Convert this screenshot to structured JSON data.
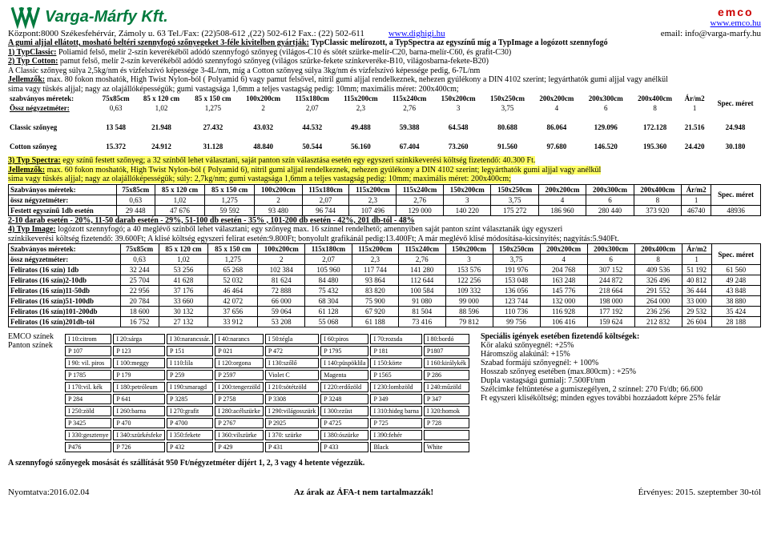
{
  "header": {
    "company": "Varga-Márfy Kft.",
    "address": "Központ:8000 Székesfehérvár, Zámoly u. 63 Tel./Fax: (22)508-612 ,(22) 502-612 Fax.: (22) 502-611",
    "link_dighigi": "www.dighigi.hu",
    "email_label": "email: info@varga-marfy.hu",
    "emco_brand": "emco",
    "emco_link": "www.emco.hu"
  },
  "intro": {
    "line1a": "A gumi aljjal ellátott, mosható beltéri szennyfogó szőnyegeket 3-féle kivitelben gyártják:",
    "line1b": " TypClassic melírozott, a TypSpectra az egyszínű míg a TypImage a logózott szennyfogó",
    "line2a": "1) TypClassic:",
    "line2b": " Poliamid felső, melír 2-szín keverékéből adódó szennyfogó szőnyeg (világos-C10 és sötét szürke-melír-C20, barna-melír-C60, és grafit-C30)",
    "line3a": "2) Typ Cotton:",
    "line3b": " pamut felső, melír 2-szín keverékéből adódó szennyfogó szőnyeg (világos szürke-fekete színkeveréke-B10, világosbarna-fekete-B20)",
    "line4": "A Classic szőnyeg súlya 2,5kg/nm és vízfelszívó képessége 3-4L/nm, míg a Cotton szőnyeg súlya 3kg/nm és vízfelszívó képessége pedig, 6-7L/nm",
    "line5a": "Jellemzők:",
    "line5b": " max. 80 fokon moshatók, High Twist Nylon-ból ( Polyamid 6) vagy pamut felsővel, nitril gumi aljjal rendelkeznek, nehezen gyúlékony a DIN 4102 szerint; legyárthatók gumi aljjal vagy anélkül",
    "line6": "sima vagy tüskés aljjal; nagy az olajállóképességük; gumi vastagsága 1,6mm a teljes vastagság pedig: 10mm; maximális méret: 200x400cm;"
  },
  "table1": {
    "headers": [
      "",
      "75x85cm",
      "85 x 120 cm",
      "85 x 150 cm",
      "100x200cm",
      "115x180cm",
      "115x200cm",
      "115x240cm",
      "150x200cm",
      "150x250cm",
      "200x200cm",
      "200x300cm",
      "200x400cm",
      "Ár/m2",
      "Spec. méret"
    ],
    "row_labels": [
      "szabványos méretek:",
      "Össz négyzetméter:"
    ],
    "row_nm": [
      "0,63",
      "1,02",
      "1,275",
      "2",
      "2,07",
      "2,3",
      "2,76",
      "3",
      "3,75",
      "4",
      "6",
      "8",
      "1",
      ""
    ],
    "classic_label": "Classic szőnyeg",
    "classic": [
      "13 548",
      "21.948",
      "27.432",
      "43.032",
      "44.532",
      "49.488",
      "59.388",
      "64.548",
      "80.688",
      "86.064",
      "129.096",
      "172.128",
      "21.516",
      "24.948"
    ],
    "cotton_label": "Cotton szőnyeg",
    "cotton": [
      "15.372",
      "24.912",
      "31.128",
      "48.840",
      "50.544",
      "56.160",
      "67.404",
      "73.260",
      "91.560",
      "97.680",
      "146.520",
      "195.360",
      "24.420",
      "30.180"
    ]
  },
  "section3": {
    "line1a": "3) Typ Spectra:",
    "line1b": " egy színű festett szőnyeg; a 32 színből lehet választani, saját panton szín választása esetén egy egyszeri színkikeverési költség fizetendő: 40.300 Ft.",
    "line2a": "Jellemzők:",
    "line2b": " max. 60 fokon moshatók, High Twist Nylon-ból ( Polyamid 6), nitril gumi aljjal rendelkeznek, nehezen gyúlékony a DIN 4102 szerint; legyárthatók gumi aljjal vagy anélkül",
    "line3": "sima vagy tüskés aljjal; nagy az olajállóképességük; súly: 2,7kg/nm; gumi vastagsága 1,6mm a teljes vastagság pedig: 10mm; maximális méret: 200x400cm;"
  },
  "table2": {
    "r1_label": "Szabványos méretek:",
    "headers": [
      "75x85cm",
      "85 x 120 cm",
      "85 x 150 cm",
      "100x200cm",
      "115x180cm",
      "115x200cm",
      "115x240cm",
      "150x200cm",
      "150x250cm",
      "200x200cm",
      "200x300cm",
      "200x400cm",
      "Ár/m2",
      "Spec. méret"
    ],
    "r2_label": "össz négyzetméter:",
    "r2": [
      "0,63",
      "1,02",
      "1,275",
      "2",
      "2,07",
      "2,3",
      "2,76",
      "3",
      "3,75",
      "4",
      "6",
      "8",
      "1",
      ""
    ],
    "r3_label": "Festett egyszínű 1db esetén",
    "r3": [
      "29 448",
      "47 676",
      "59 592",
      "93 480",
      "96 744",
      "107 496",
      "129 000",
      "140 220",
      "175 272",
      "186 960",
      "280 440",
      "373 920",
      "46740",
      "48936"
    ]
  },
  "discount": "2-10 darab esetén - 20%, 11-50 darab esetén - 29%, 51-100 db esetén - 35% , 101-200 db esetén - 42%, 201 db-tól - 48%",
  "section4": {
    "line1a": "4) Typ Image:",
    "line1b": " logózott szennyfogó; a 40 meglévő színből lehet választani; egy szőnyeg max. 16 színnel rendelhető; amennyiben saját panton színt választanák úgy egyszeri",
    "line2": "színkikeverési költség fizetendő: 39.600Ft; A klisé költség egyszeri felirat esetén:9.800Ft; bonyolult grafikánál pedig:13.400Ft; A már meglévő klisé módosítása-kicsinyítés; nagyítás:5.940Ft."
  },
  "table3": {
    "r1_label": "Szabványos méretek:",
    "headers": [
      "75x85cm",
      "85 x 120 cm",
      "85 x 150 cm",
      "100x200cm",
      "115x180cm",
      "115x200cm",
      "115x240cm",
      "150x200cm",
      "150x250cm",
      "200x200cm",
      "200x300cm",
      "200x400cm",
      "Ár/m2",
      "Spec. méret"
    ],
    "r2_label": "össz négyzetméter:",
    "r2": [
      "0,63",
      "1,02",
      "1,275",
      "2",
      "2,07",
      "2,3",
      "2,76",
      "3",
      "3,75",
      "4",
      "6",
      "8",
      "1",
      ""
    ],
    "rows": [
      {
        "label": "Feliratos (16 szín) 1db",
        "v": [
          "32 244",
          "53 256",
          "65 268",
          "102 384",
          "105 960",
          "117 744",
          "141 280",
          "153 576",
          "191 976",
          "204 768",
          "307 152",
          "409 536",
          "51 192",
          "61 560"
        ]
      },
      {
        "label": "Feliratos (16 szín)2-10db",
        "v": [
          "25 704",
          "41 628",
          "52 032",
          "81 624",
          "84 480",
          "93 864",
          "112 644",
          "122 256",
          "153 048",
          "163 248",
          "244 872",
          "326 496",
          "40 812",
          "49 248"
        ]
      },
      {
        "label": "Feliratos (16 szín)11-50db",
        "v": [
          "22 956",
          "37 176",
          "46 464",
          "72 888",
          "75 432",
          "83 820",
          "100 584",
          "109 332",
          "136 056",
          "145 776",
          "218 664",
          "291 552",
          "36 444",
          "43 848"
        ]
      },
      {
        "label": "Feliratos (16 szín)51-100db",
        "v": [
          "20 784",
          "33 660",
          "42 072",
          "66 000",
          "68 304",
          "75 900",
          "91 080",
          "99 000",
          "123 744",
          "132 000",
          "198 000",
          "264 000",
          "33 000",
          "38 880"
        ]
      },
      {
        "label": "Feliratos (16 szín)101-200db",
        "v": [
          "18 600",
          "30 132",
          "37 656",
          "59 064",
          "61 128",
          "67 920",
          "81 504",
          "88 596",
          "110 736",
          "116 928",
          "177 192",
          "236 256",
          "29 532",
          "35 424"
        ]
      },
      {
        "label": "Feliratos (16 szín)201db-tól",
        "v": [
          "16 752",
          "27 132",
          "33 912",
          "53 208",
          "55 068",
          "61 188",
          "73 416",
          "79 812",
          "99 756",
          "106 416",
          "159 624",
          "212 832",
          "26 604",
          "28 188"
        ]
      }
    ]
  },
  "colors": {
    "left_labels": [
      "EMCO színek",
      "Panton színek"
    ],
    "rows": [
      [
        "I 10:citrom",
        "I 20:sárga",
        "I 30:narancssár.",
        "I 40:narancs",
        "I 50:tégla",
        "I 60:piros",
        "I 70:rozsda",
        "I 80:bordó"
      ],
      [
        "P 107",
        "P 123",
        "P 151",
        "P 021",
        "P 472",
        "P 1795",
        "P 181",
        "P1807"
      ],
      [
        "I 90: vil. piros",
        "I 100:meggy",
        "I 110:lila",
        "I 120:orgona",
        "I 130:szőlő",
        "I 140:püspöklila",
        "I 150:körte",
        "I 160:királykék"
      ],
      [
        "P 1785",
        "P 179",
        "P 259",
        "P 2597",
        "Violet C",
        "Magenta",
        "P 1565",
        "P 286"
      ],
      [
        "I 170:vil. kék",
        "I 180:petróleum",
        "I 190:smaragd",
        "I 200:tengerzöld",
        "I 210:sötétzöld",
        "I 220:erdőzöld",
        "I 230:lombzöld",
        "I 240:műzöld"
      ],
      [
        "P 284",
        "P 641",
        "P 3285",
        "P 2758",
        "P 3308",
        "P 3248",
        "P 349",
        "P 347"
      ],
      [
        "I 250:zöld",
        "I 260:barna",
        "I 270:grafit",
        "I 280:acélszürke",
        "I 290:világosszürk",
        "I 300:ezüst",
        "I 310:hideg barna",
        "I 320:homok"
      ],
      [
        "P 3425",
        "P 470",
        "P 4700",
        "P 2767",
        "P 2925",
        "P 4725",
        "P 725",
        "P 728"
      ],
      [
        "I 330:gesztenye",
        "I 340:szürkésfeke",
        "I 350:fekete",
        "I 360:vilszürke",
        "I 370: szürke",
        "I 380:ószürke",
        "I 390:fehér",
        ""
      ],
      [
        "P476",
        "P 726",
        "P 432",
        "P 429",
        "P 431",
        "P 433",
        "Black",
        "White"
      ]
    ]
  },
  "special": {
    "title": "Speciális igények esetében fizetendő költségek:",
    "items": [
      "Kör alakú szőnyegnél: +25%",
      "Háromszög alakúnál: +15%",
      "Szabad formájú szőnyegnél: + 100%",
      "Hosszab szőnyeg esetében (max.800cm) : +25%",
      "Dupla vastagságú gumialj: 7.500Ft/nm",
      "Szélcimke feltüntetése a gumiszegélyen, 2 színnel: 270 Ft/db; 66.600",
      "Ft egyszeri kliséköltség; minden egyes további hozzáadott képre 25% felár"
    ]
  },
  "bottom": "A szennyfogó szőnyegek mosását és szállítását 950 Ft/négyzetméter díjért 1, 2, 3 vagy 4 hetente végezzük.",
  "footer": {
    "left": "Nyomtatva:2016.02.04",
    "mid": "Az árak az ÁFA-t nem tartalmazzák!",
    "right": "Érvényes: 2015. szeptember 30-tól"
  }
}
